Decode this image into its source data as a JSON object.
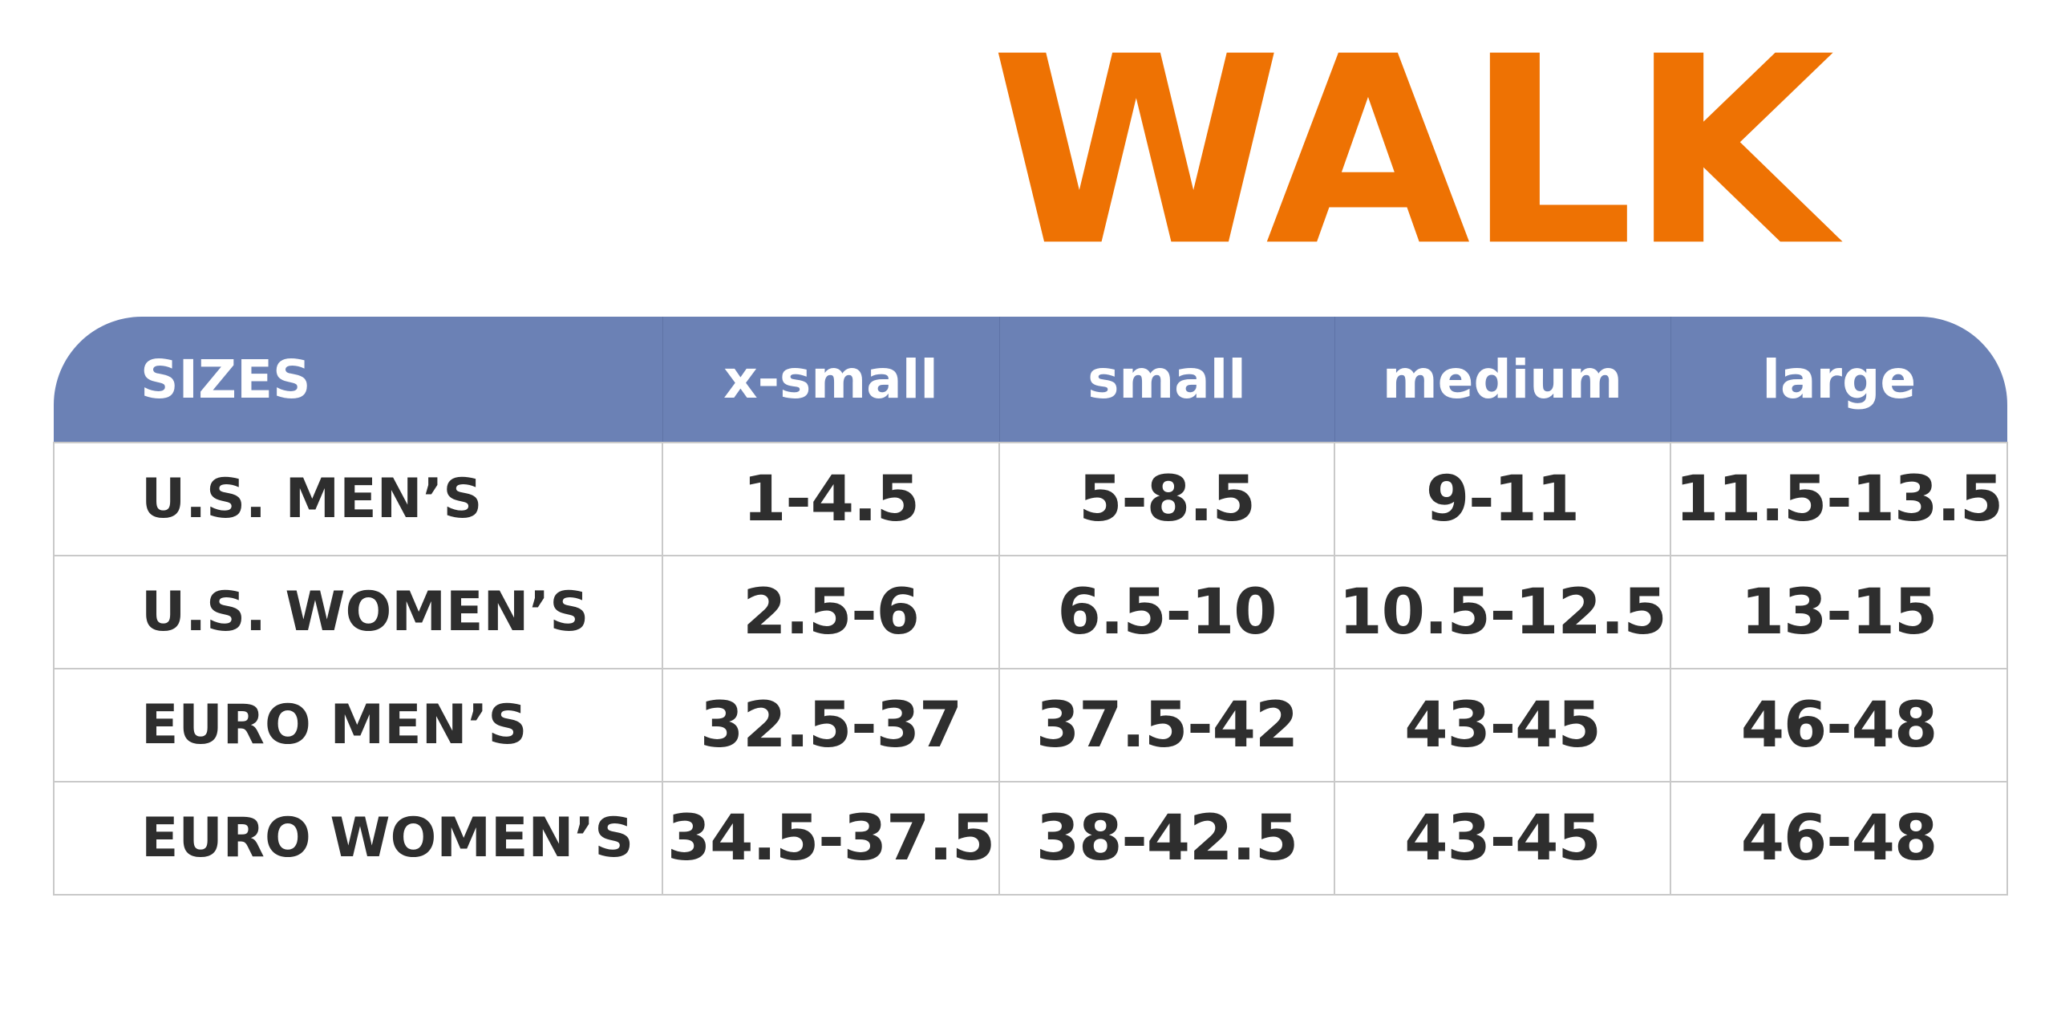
{
  "brand": {
    "title": "WALK",
    "color": "#ee7203"
  },
  "table": {
    "header_color": "#6b81b5",
    "header": [
      "SIZES",
      "x-small",
      "small",
      "medium",
      "large"
    ],
    "rows": [
      {
        "label": "U.S. MEN’S",
        "values": [
          "1-4.5",
          "5-8.5",
          "9-11",
          "11.5-13.5"
        ]
      },
      {
        "label": "U.S. WOMEN’S",
        "values": [
          "2.5-6",
          "6.5-10",
          "10.5-12.5",
          "13-15"
        ]
      },
      {
        "label": "EURO MEN’S",
        "values": [
          "32.5-37",
          "37.5-42",
          "43-45",
          "46-48"
        ]
      },
      {
        "label": "EURO WOMEN’S",
        "values": [
          "34.5-37.5",
          "38-42.5",
          "43-45",
          "46-48"
        ]
      }
    ]
  }
}
